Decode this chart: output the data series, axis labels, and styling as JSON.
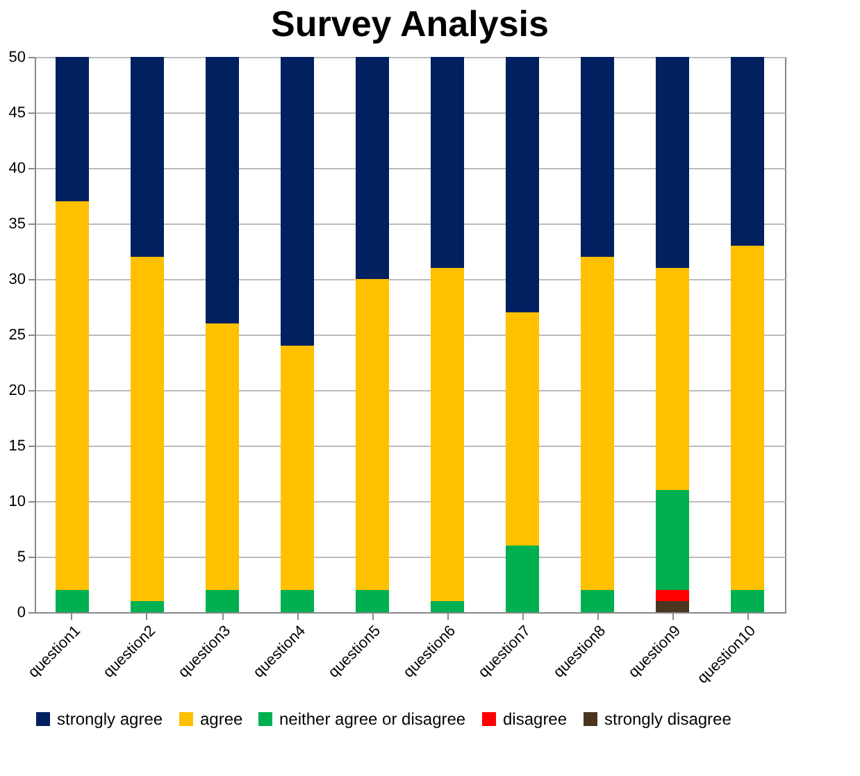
{
  "chart_data": {
    "type": "bar",
    "title": "Survey Analysis",
    "stacked": true,
    "categories": [
      "question1",
      "question2",
      "question3",
      "question4",
      "question5",
      "question6",
      "question7",
      "question8",
      "question9",
      "question10"
    ],
    "series": [
      {
        "name": "strongly disagree",
        "color": "#4a3520",
        "values": [
          0,
          0,
          0,
          0,
          0,
          0,
          0,
          0,
          1,
          0
        ]
      },
      {
        "name": "disagree",
        "color": "#ff0000",
        "values": [
          0,
          0,
          0,
          0,
          0,
          0,
          0,
          0,
          1,
          0
        ]
      },
      {
        "name": "neither agree or disagree",
        "color": "#00b050",
        "values": [
          2,
          1,
          2,
          2,
          2,
          1,
          6,
          2,
          9,
          2
        ]
      },
      {
        "name": "agree",
        "color": "#ffc000",
        "values": [
          35,
          31,
          24,
          22,
          28,
          30,
          21,
          30,
          20,
          31
        ]
      },
      {
        "name": "strongly agree",
        "color": "#002060",
        "values": [
          13,
          18,
          24,
          26,
          20,
          19,
          23,
          18,
          19,
          17
        ]
      }
    ],
    "ylim": [
      0,
      50
    ],
    "yticks": [
      0,
      5,
      10,
      15,
      20,
      25,
      30,
      35,
      40,
      45,
      50
    ],
    "grid": "y",
    "legend": "bottom"
  }
}
